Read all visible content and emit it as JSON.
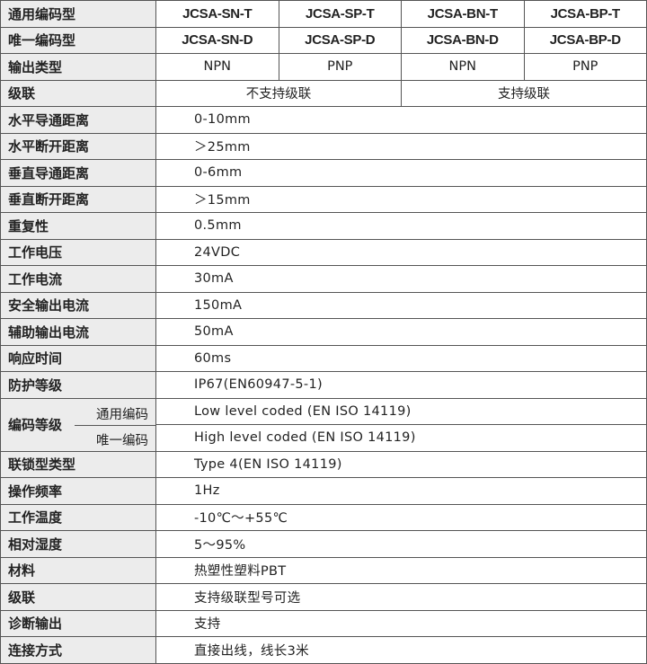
{
  "header_rows": [
    {
      "label": "通用编码型",
      "cells": [
        "JCSA-SN-T",
        "JCSA-SP-T",
        "JCSA-BN-T",
        "JCSA-BP-T"
      ]
    },
    {
      "label": "唯一编码型",
      "cells": [
        "JCSA-SN-D",
        "JCSA-SP-D",
        "JCSA-BN-D",
        "JCSA-BP-D"
      ]
    },
    {
      "label": "输出类型",
      "cells": [
        "NPN",
        "PNP",
        "NPN",
        "PNP"
      ]
    }
  ],
  "cascade": {
    "label": "级联",
    "cells": [
      "不支持级联",
      "支持级联"
    ]
  },
  "rows_a": [
    {
      "label": "水平导通距离",
      "value": "0-10mm"
    },
    {
      "label": "水平断开距离",
      "value": "＞25mm"
    },
    {
      "label": "垂直导通距离",
      "value": "0-6mm"
    },
    {
      "label": "垂直断开距离",
      "value": "＞15mm"
    },
    {
      "label": "重复性",
      "value": "0.5mm"
    },
    {
      "label": "工作电压",
      "value": "24VDC"
    },
    {
      "label": "工作电流",
      "value": "30mA"
    },
    {
      "label": "安全输出电流",
      "value": "150mA"
    },
    {
      "label": "辅助输出电流",
      "value": "50mA"
    },
    {
      "label": "响应时间",
      "value": "60ms"
    },
    {
      "label": "防护等级",
      "value": "IP67(EN60947-5-1)"
    }
  ],
  "coding": {
    "label": "编码等级",
    "sub1": "通用编码",
    "value1": "Low level coded (EN ISO 14119)",
    "sub2": "唯一编码",
    "value2": "High level coded (EN ISO 14119)"
  },
  "rows_b": [
    {
      "label": "联锁型类型",
      "value": "Type  4(EN ISO 14119)"
    },
    {
      "label": "操作频率",
      "value": "1Hz"
    },
    {
      "label": "工作温度",
      "value": "-10℃～+55℃"
    },
    {
      "label": "相对湿度",
      "value": "5～95%"
    },
    {
      "label": "材料",
      "value": "热塑性塑料PBT"
    },
    {
      "label": "级联",
      "value": "支持级联型号可选"
    },
    {
      "label": "诊断输出",
      "value": "支持"
    },
    {
      "label": "连接方式",
      "value": "直接出线，线长3米"
    }
  ]
}
